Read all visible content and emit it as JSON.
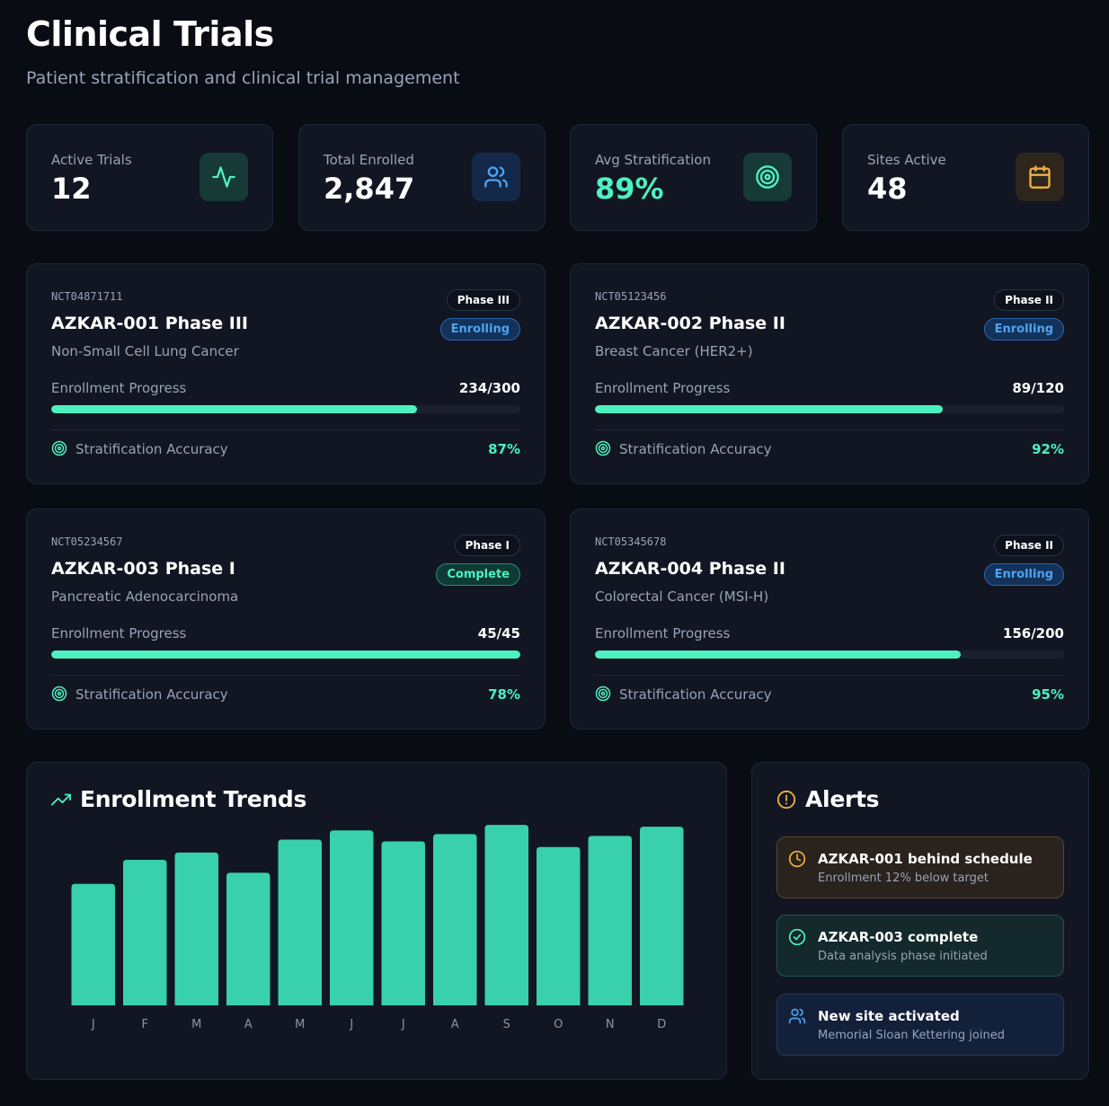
{
  "header": {
    "title": "Clinical Trials",
    "subtitle": "Patient stratification and clinical trial management"
  },
  "stats": [
    {
      "label": "Active Trials",
      "value": "12",
      "icon": "activity-icon"
    },
    {
      "label": "Total Enrolled",
      "value": "2,847",
      "icon": "users-icon"
    },
    {
      "label": "Avg Stratification",
      "value": "89%",
      "icon": "target-icon"
    },
    {
      "label": "Sites Active",
      "value": "48",
      "icon": "calendar-icon"
    }
  ],
  "trials": [
    {
      "id": "NCT04871711",
      "name": "AZKAR-001 Phase III",
      "condition": "Non-Small Cell Lung Cancer",
      "phase": "Phase III",
      "status": "Enrolling",
      "progress_label": "Enrollment Progress",
      "progress_text": "234/300",
      "enrolled": 234,
      "target": 300,
      "accuracy_label": "Stratification Accuracy",
      "accuracy": "87%"
    },
    {
      "id": "NCT05123456",
      "name": "AZKAR-002 Phase II",
      "condition": "Breast Cancer (HER2+)",
      "phase": "Phase II",
      "status": "Enrolling",
      "progress_label": "Enrollment Progress",
      "progress_text": "89/120",
      "enrolled": 89,
      "target": 120,
      "accuracy_label": "Stratification Accuracy",
      "accuracy": "92%"
    },
    {
      "id": "NCT05234567",
      "name": "AZKAR-003 Phase I",
      "condition": "Pancreatic Adenocarcinoma",
      "phase": "Phase I",
      "status": "Complete",
      "progress_label": "Enrollment Progress",
      "progress_text": "45/45",
      "enrolled": 45,
      "target": 45,
      "accuracy_label": "Stratification Accuracy",
      "accuracy": "78%"
    },
    {
      "id": "NCT05345678",
      "name": "AZKAR-004 Phase II",
      "condition": "Colorectal Cancer (MSI-H)",
      "phase": "Phase II",
      "status": "Enrolling",
      "progress_label": "Enrollment Progress",
      "progress_text": "156/200",
      "enrolled": 156,
      "target": 200,
      "accuracy_label": "Stratification Accuracy",
      "accuracy": "95%"
    }
  ],
  "trends": {
    "title": "Enrollment Trends"
  },
  "chart_data": {
    "type": "bar",
    "title": "Enrollment Trends",
    "categories": [
      "J",
      "F",
      "M",
      "A",
      "M",
      "J",
      "J",
      "A",
      "S",
      "O",
      "N",
      "D"
    ],
    "values": [
      66,
      79,
      83,
      72,
      90,
      95,
      89,
      93,
      98,
      86,
      92,
      97
    ],
    "ylim": [
      0,
      100
    ],
    "xlabel": "",
    "ylabel": "",
    "color": "#38d0ad",
    "grid": false
  },
  "alerts": {
    "title": "Alerts",
    "items": [
      {
        "title": "AZKAR-001 behind schedule",
        "text": "Enrollment 12% below target",
        "type": "warning"
      },
      {
        "title": "AZKAR-003 complete",
        "text": "Data analysis phase initiated",
        "type": "success"
      },
      {
        "title": "New site activated",
        "text": "Memorial Sloan Kettering joined",
        "type": "info"
      }
    ]
  },
  "colors": {
    "accent": "#4ef0c0",
    "blue": "#4fa3f0",
    "amber": "#f0b040",
    "background": "#0a0c13",
    "card": "#111622"
  }
}
